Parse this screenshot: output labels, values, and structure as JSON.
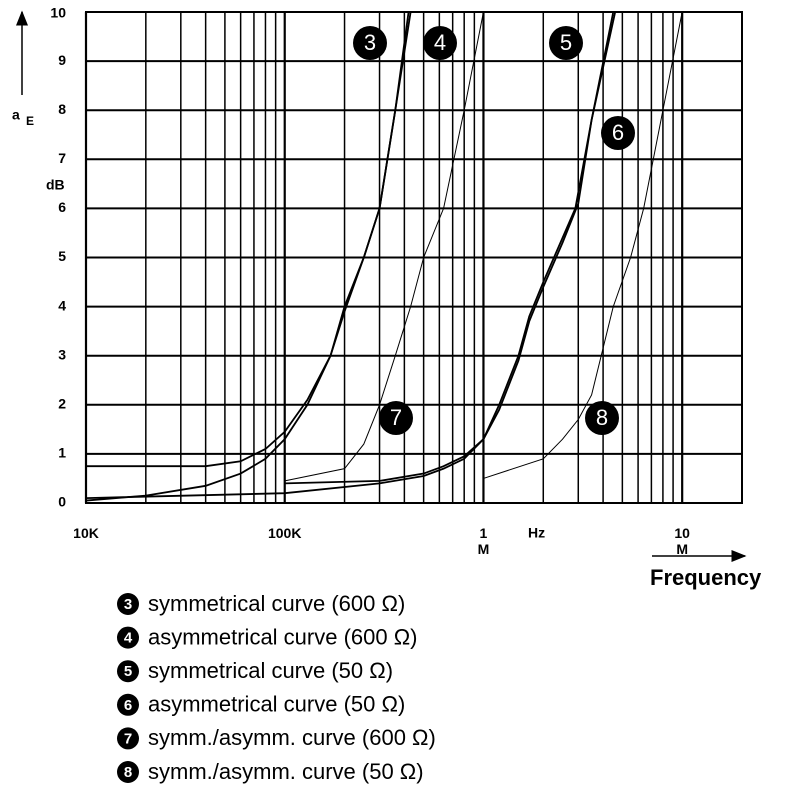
{
  "chart_data": {
    "type": "line",
    "log_x": true,
    "grid": true,
    "xlim": [
      10000,
      20000000
    ],
    "ylim": [
      0,
      10
    ],
    "xticks": [
      {
        "value": 10000,
        "label": "10K"
      },
      {
        "value": 100000,
        "label": "100K"
      },
      {
        "value": 1000000,
        "label": "1\nM"
      },
      {
        "value": 10000000,
        "label": "10\nM"
      }
    ],
    "x_minor_grid": [
      20000,
      30000,
      40000,
      50000,
      60000,
      70000,
      80000,
      90000,
      200000,
      300000,
      400000,
      500000,
      600000,
      700000,
      800000,
      900000,
      2000000,
      3000000,
      4000000,
      5000000,
      6000000,
      7000000,
      8000000,
      9000000
    ],
    "yticks": [
      0,
      1,
      2,
      3,
      4,
      5,
      6,
      7,
      8,
      9,
      10
    ],
    "x_unit": "Hz",
    "x_label": "Frequency",
    "y_label": "a",
    "y_label_sub": "E",
    "y_unit": "dB",
    "series": [
      {
        "marker": "3",
        "name": "symmetrical curve (600 Ω)",
        "color": "#000000",
        "line_width": 1.8,
        "x": [
          10000,
          20000,
          40000,
          60000,
          80000,
          100000,
          130000,
          170000,
          200000,
          250000,
          300000,
          360000,
          430000
        ],
        "values": [
          0.05,
          0.15,
          0.35,
          0.6,
          0.9,
          1.3,
          2,
          3,
          4,
          5,
          6,
          8,
          10
        ]
      },
      {
        "marker": "4",
        "name": "asymmetrical curve (600 Ω)",
        "color": "#000000",
        "line_width": 1.8,
        "x": [
          10000,
          40000,
          60000,
          80000,
          100000,
          130000,
          170000,
          200000,
          250000,
          300000,
          360000,
          420000
        ],
        "values": [
          0.75,
          0.75,
          0.85,
          1.1,
          1.45,
          2.1,
          3,
          3.9,
          5,
          6,
          8,
          10
        ]
      },
      {
        "marker": "5",
        "name": "symmetrical curve (50 Ω)",
        "color": "#000000",
        "line_width": 1.8,
        "x": [
          10000,
          100000,
          300000,
          500000,
          630000,
          800000,
          1000000,
          1200000,
          1500000,
          1700000,
          2000000,
          2500000,
          2900000,
          3500000,
          4500000
        ],
        "values": [
          0.1,
          0.2,
          0.4,
          0.55,
          0.7,
          0.9,
          1.3,
          2,
          3,
          3.8,
          4.5,
          5.4,
          6,
          7.8,
          10
        ]
      },
      {
        "marker": "6",
        "name": "asymmetrical curve (50 Ω)",
        "color": "#000000",
        "line_width": 1.8,
        "x": [
          100000,
          300000,
          500000,
          630000,
          800000,
          1000000,
          1200000,
          1500000,
          1700000,
          2000000,
          2500000,
          3000000,
          3500000,
          4600000
        ],
        "values": [
          0.4,
          0.45,
          0.6,
          0.75,
          0.95,
          1.3,
          1.9,
          2.9,
          3.7,
          4.4,
          5.3,
          6.1,
          7.8,
          10
        ]
      },
      {
        "marker": "7",
        "name": "symm./asymm. curve (600 Ω)",
        "color": "#000000",
        "line_width": 1,
        "x": [
          100000,
          200000,
          250000,
          300000,
          360000,
          430000,
          500000,
          630000,
          800000,
          1000000
        ],
        "values": [
          0.45,
          0.7,
          1.2,
          2,
          3,
          4,
          5,
          6,
          8,
          10
        ]
      },
      {
        "marker": "8",
        "name": "symm./asymm. curve (50 Ω)",
        "color": "#000000",
        "line_width": 1,
        "x": [
          1000000,
          2000000,
          2500000,
          3000000,
          3500000,
          4500000,
          5500000,
          6400000,
          8000000,
          10000000
        ],
        "values": [
          0.5,
          0.9,
          1.3,
          1.7,
          2.2,
          4,
          5,
          6,
          8,
          10
        ]
      }
    ]
  }
}
